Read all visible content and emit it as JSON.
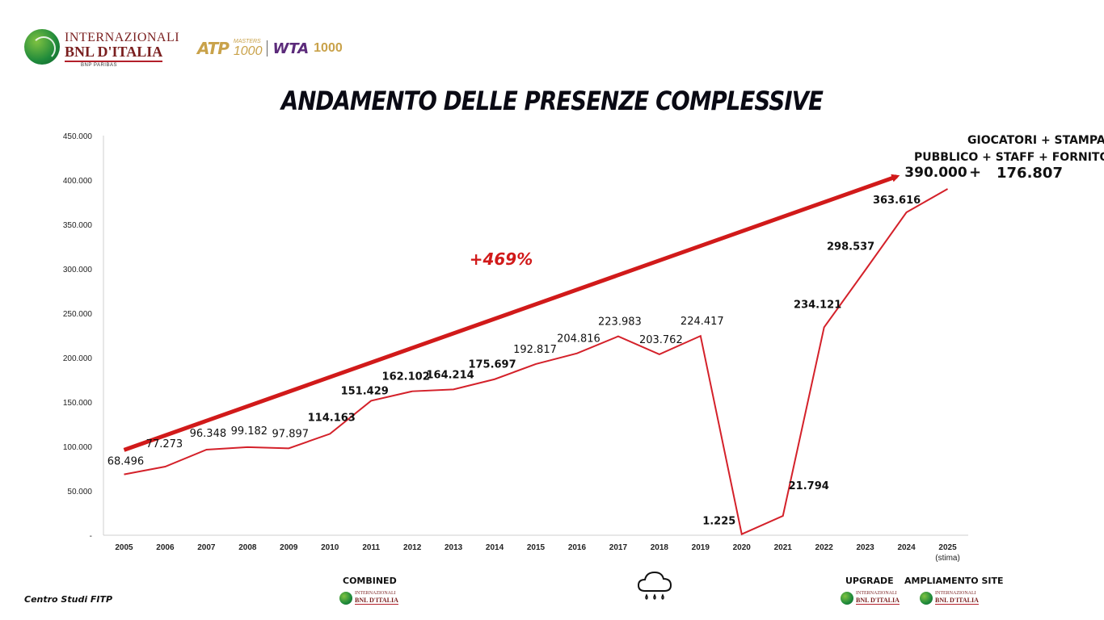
{
  "header": {
    "logo_line1": "INTERNAZIONALI",
    "logo_line2": "BNL D'ITALIA",
    "logo_line3": "BNP PARIBAS",
    "atp": "ATP",
    "masters": "MASTERS",
    "masters_1000": "1000",
    "wta": "WTA",
    "wta_1000": "1000"
  },
  "title": "ANDAMENTO DELLE PRESENZE COMPLESSIVE",
  "chart_data": {
    "type": "line",
    "title": "ANDAMENTO DELLE PRESENZE COMPLESSIVE",
    "categories": [
      "2005",
      "2006",
      "2007",
      "2008",
      "2009",
      "2010",
      "2011",
      "2012",
      "2013",
      "2014",
      "2015",
      "2016",
      "2017",
      "2018",
      "2019",
      "2020",
      "2021",
      "2022",
      "2023",
      "2024",
      "2025"
    ],
    "category_sublabels": {
      "2025": "(stima)"
    },
    "values": [
      68496,
      77273,
      96348,
      99182,
      97897,
      114163,
      151429,
      162102,
      164214,
      175697,
      192817,
      204816,
      223983,
      203762,
      224417,
      1225,
      21794,
      234121,
      298537,
      363616,
      390000
    ],
    "data_labels": [
      "68.496",
      "77.273",
      "96.348",
      "99.182",
      "97.897",
      "114.163",
      "151.429",
      "162.102",
      "164.214",
      "175.697",
      "192.817",
      "204.816",
      "223.983",
      "203.762",
      "224.417",
      "1.225",
      "21.794",
      "234.121",
      "298.537",
      "363.616",
      "390.000"
    ],
    "ylim": [
      0,
      450000
    ],
    "yticks": [
      0,
      50000,
      100000,
      150000,
      200000,
      250000,
      300000,
      350000,
      400000,
      450000
    ],
    "ytick_labels": [
      "-",
      "50.000",
      "100.000",
      "150.000",
      "200.000",
      "250.000",
      "300.000",
      "350.000",
      "400.000",
      "450.000"
    ],
    "trend_arrow": {
      "from_value": 96000,
      "to_value": 404000,
      "label": "+469%"
    },
    "annotation": {
      "line1": "GIOCATORI + STAMPA",
      "line2": "PUBBLICO + STAFF + FORNITORI",
      "plus": "+",
      "value": "176.807"
    },
    "line_color": "#d4212a",
    "arrow_color": "#d11a1a"
  },
  "bottom": {
    "combined": "COMBINED",
    "upgrade": "UPGRADE",
    "ampliamento": "AMPLIAMENTO SITE",
    "mini_logo_l1": "INTERNAZIONALI",
    "mini_logo_l2": "BNL D'ITALIA",
    "cloud_icon": "rain-cloud-icon"
  },
  "footer": "Centro Studi FITP"
}
